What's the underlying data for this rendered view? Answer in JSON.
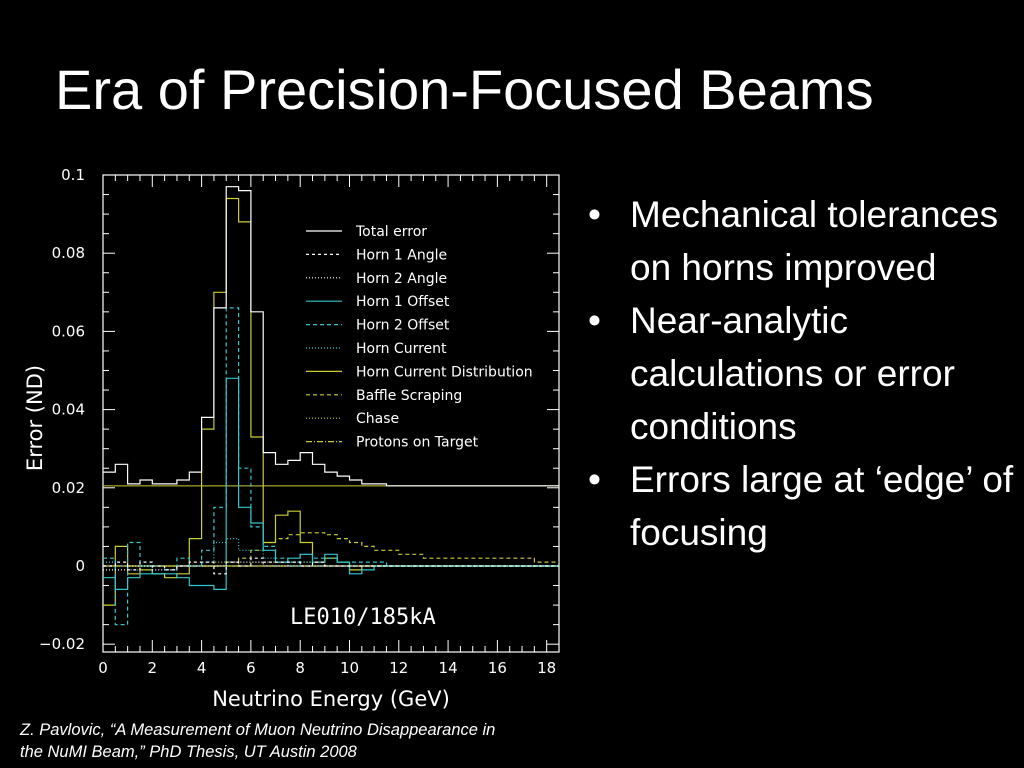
{
  "slide": {
    "title": "Era of Precision-Focused Beams",
    "bullets": [
      "Mechanical tolerances on horns improved",
      "Near-analytic calculations or error conditions",
      "Errors large at ‘edge’ of focusing"
    ],
    "bullet_glyph": "•",
    "citation_line1": "Z. Pavlovic, “A Measurement of Muon Neutrino Disappearance in",
    "citation_line2": "the NuMI Beam,”  PhD Thesis, UT Austin 2008"
  },
  "chart_data": {
    "type": "line",
    "xlabel": "Neutrino Energy (GeV)",
    "ylabel": "Error (ND)",
    "annotation": "LE010/185kA",
    "xlim": [
      0,
      18.5
    ],
    "ylim": [
      -0.022,
      0.1
    ],
    "xticks": [
      0,
      2,
      4,
      6,
      8,
      10,
      12,
      14,
      16,
      18
    ],
    "yticks": [
      -0.02,
      0,
      0.02,
      0.04,
      0.06,
      0.08,
      0.1
    ],
    "ytick_labels": [
      "−0.02",
      "0",
      "0.02",
      "0.04",
      "0.06",
      "0.08",
      "0.1"
    ],
    "legend_position": "top-right",
    "reference_line_y": 0.0205,
    "bin_edges": [
      0,
      0.5,
      1,
      1.5,
      2,
      2.5,
      3,
      3.5,
      4,
      4.5,
      5,
      5.5,
      6,
      6.5,
      7,
      7.5,
      8,
      8.5,
      9,
      9.5,
      10,
      10.5,
      11,
      11.5,
      12,
      12.5,
      13,
      13.5,
      14,
      14.5,
      15,
      15.5,
      16,
      16.5,
      17,
      17.5,
      18,
      18.5
    ],
    "series": [
      {
        "name": "Total error",
        "color": "#ffffff",
        "dash": "solid",
        "values": [
          0.024,
          0.026,
          0.021,
          0.022,
          0.021,
          0.021,
          0.022,
          0.024,
          0.038,
          0.066,
          0.097,
          0.096,
          0.065,
          0.029,
          0.026,
          0.027,
          0.029,
          0.026,
          0.024,
          0.023,
          0.022,
          0.021,
          0.021,
          0.0205,
          0.0205,
          0.0205,
          0.0205,
          0.0205,
          0.0205,
          0.0205,
          0.0205,
          0.0205,
          0.0205,
          0.0205,
          0.0205,
          0.0205,
          0.0205
        ]
      },
      {
        "name": "Horn 1 Angle",
        "color": "#ffffff",
        "dash": "3,3",
        "values": [
          0.0,
          0.001,
          -0.001,
          0.001,
          0.0,
          -0.001,
          0.0,
          0.001,
          0.001,
          -0.002,
          0.001,
          0.0,
          0.002,
          0.001,
          0.001,
          0.001,
          0.0,
          0.001,
          0.0,
          0.0,
          0.0,
          0.0,
          0.0,
          0.0,
          0.0,
          0.0,
          0.0,
          0.0,
          0.0,
          0.0,
          0.0,
          0.0,
          0.0,
          0.0,
          0.0,
          0.0,
          0.0
        ]
      },
      {
        "name": "Horn 2 Angle",
        "color": "#ffffff",
        "dash": "1,2",
        "values": [
          -0.001,
          -0.001,
          0.0,
          0.0,
          -0.001,
          -0.001,
          0.0,
          0.0,
          0.0,
          0.0,
          0.001,
          0.001,
          0.001,
          0.0,
          0.0,
          0.0,
          0.0,
          0.0,
          0.0,
          0.0,
          0.0,
          0.0,
          0.0,
          0.0,
          0.0,
          0.0,
          0.0,
          0.0,
          0.0,
          0.0,
          0.0,
          0.0,
          0.0,
          0.0,
          0.0,
          0.0,
          0.0
        ]
      },
      {
        "name": "Horn 1 Offset",
        "color": "#33c6cc",
        "dash": "solid",
        "values": [
          -0.003,
          -0.006,
          -0.003,
          -0.002,
          -0.002,
          -0.002,
          -0.003,
          -0.005,
          -0.005,
          -0.006,
          0.048,
          0.015,
          0.011,
          0.004,
          0.001,
          0.002,
          0.003,
          0.001,
          0.003,
          0.001,
          -0.002,
          -0.001,
          0.0,
          0.0,
          0.0,
          0.0,
          0.0,
          0.0,
          0.0,
          0.0,
          0.0,
          0.0,
          0.0,
          0.0,
          0.0,
          0.0,
          0.0
        ]
      },
      {
        "name": "Horn 2 Offset",
        "color": "#33c6cc",
        "dash": "4,3",
        "values": [
          0.002,
          -0.015,
          0.006,
          0.0,
          -0.002,
          -0.001,
          0.002,
          0.0,
          0.004,
          0.015,
          0.066,
          0.025,
          0.01,
          0.005,
          0.002,
          0.001,
          0.003,
          0.002,
          0.002,
          0.001,
          0.001,
          0.001,
          0.001,
          0.0,
          0.0,
          0.0,
          0.0,
          0.0,
          0.0,
          0.0,
          0.0,
          0.0,
          0.0,
          0.0,
          0.0,
          0.0,
          0.0
        ]
      },
      {
        "name": "Horn Current",
        "color": "#33c6cc",
        "dash": "1,2",
        "values": [
          0.001,
          0.0,
          -0.001,
          0.0,
          0.0,
          -0.001,
          0.0,
          0.0,
          0.001,
          0.006,
          0.007,
          0.004,
          0.004,
          0.002,
          0.001,
          0.0,
          0.001,
          0.0,
          0.0,
          0.0,
          0.0,
          0.0,
          0.0,
          0.0,
          0.0,
          0.0,
          0.0,
          0.0,
          0.0,
          0.0,
          0.0,
          0.0,
          0.0,
          0.0,
          0.0,
          0.0,
          0.0
        ]
      },
      {
        "name": "Horn Current Distribution",
        "color": "#cccc33",
        "dash": "solid",
        "values": [
          -0.01,
          0.005,
          -0.002,
          -0.001,
          -0.002,
          -0.003,
          -0.002,
          0.007,
          0.035,
          0.07,
          0.094,
          0.088,
          0.033,
          0.006,
          0.013,
          0.014,
          0.006,
          0.001,
          0.002,
          0.001,
          -0.001,
          0.0,
          0.0,
          0.0,
          0.0,
          0.0,
          0.0,
          0.0,
          0.0,
          0.0,
          0.0,
          0.0,
          0.0,
          0.0,
          0.0,
          0.0,
          0.0
        ]
      },
      {
        "name": "Baffle Scraping",
        "color": "#cccc33",
        "dash": "4,3",
        "values": [
          0.0,
          0.0,
          0.0,
          0.0,
          0.0,
          0.0,
          0.0,
          0.0,
          0.0,
          0.0,
          0.0,
          0.002,
          0.004,
          0.006,
          0.007,
          0.008,
          0.0085,
          0.0085,
          0.008,
          0.007,
          0.006,
          0.005,
          0.004,
          0.004,
          0.003,
          0.003,
          0.002,
          0.002,
          0.002,
          0.002,
          0.002,
          0.002,
          0.002,
          0.002,
          0.002,
          0.001,
          0.001
        ]
      },
      {
        "name": "Chase",
        "color": "#cccc33",
        "dash": "1,2",
        "values": [
          0.001,
          0.0,
          0.0,
          0.0,
          0.0,
          0.0,
          0.0,
          0.0,
          0.0,
          0.001,
          0.001,
          0.0,
          0.001,
          0.001,
          0.001,
          0.001,
          0.001,
          0.0,
          0.0,
          0.0,
          0.0,
          0.0,
          0.0,
          0.0,
          0.0,
          0.0,
          0.0,
          0.0,
          0.0,
          0.0,
          0.0,
          0.0,
          0.0,
          0.0,
          0.0,
          0.0,
          0.0
        ]
      },
      {
        "name": "Protons on Target",
        "color": "#cccc33",
        "dash": "6,2,1,2",
        "values": [
          0.0,
          0.0,
          0.0,
          0.0,
          0.0,
          0.0,
          0.0,
          0.0,
          0.0,
          0.0,
          0.0,
          0.0,
          0.0,
          0.0,
          0.0,
          0.0,
          0.0,
          0.0,
          0.0,
          0.0,
          0.0,
          0.0,
          0.0,
          0.0,
          0.0,
          0.0,
          0.0,
          0.0,
          0.0,
          0.0,
          0.0,
          0.0,
          0.0,
          0.0,
          0.0,
          0.0,
          0.0
        ]
      }
    ]
  }
}
